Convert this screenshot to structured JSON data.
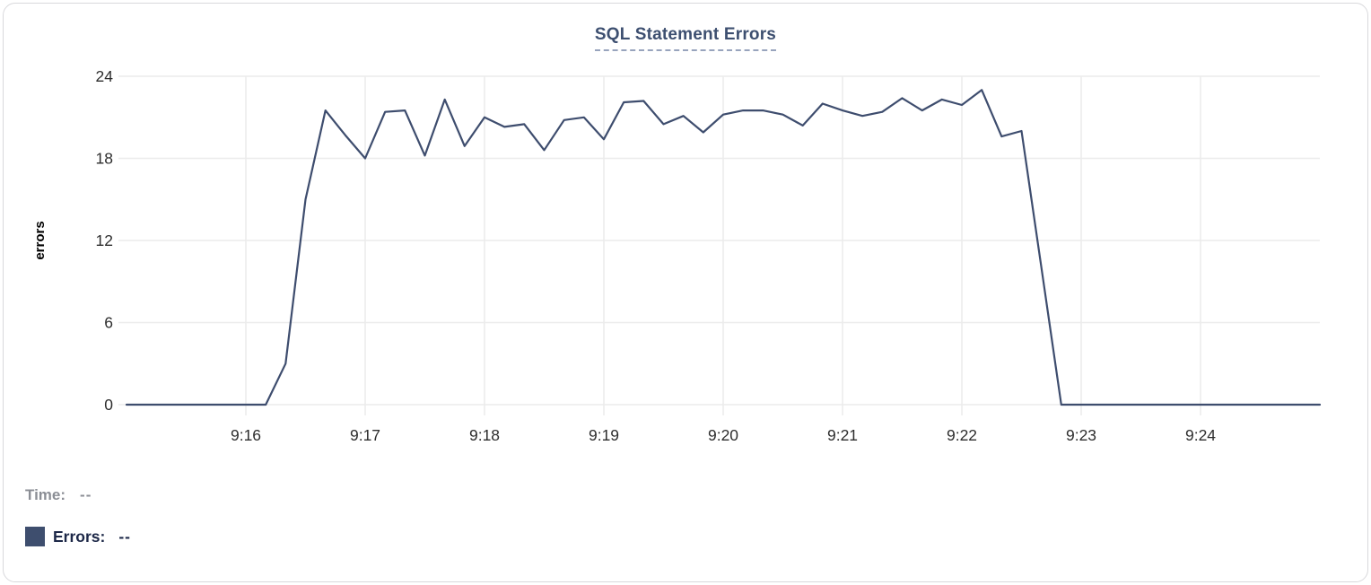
{
  "chart_data": {
    "type": "line",
    "title": "SQL Statement Errors",
    "ylabel": "errors",
    "ylim": [
      0,
      24
    ],
    "y_tick_labels": [
      0,
      6,
      12,
      18,
      24
    ],
    "x_tick_labels": [
      "9:16",
      "9:17",
      "9:18",
      "9:19",
      "9:20",
      "9:21",
      "9:22",
      "9:23",
      "9:24"
    ],
    "x_start": "9:15:00",
    "x_end": "9:25:00",
    "interval_seconds": 10,
    "grid": true,
    "legend_position": "bottom-left",
    "series": [
      {
        "name": "Errors",
        "color": "#3e4d6e",
        "values": [
          0,
          0,
          0,
          0,
          0,
          0,
          0,
          0,
          3,
          15,
          21.5,
          19.7,
          18,
          21.4,
          21.5,
          18.2,
          22.3,
          18.9,
          21,
          20.3,
          20.5,
          18.6,
          20.8,
          21,
          19.4,
          22.1,
          22.2,
          20.5,
          21.1,
          19.9,
          21.2,
          21.5,
          21.5,
          21.2,
          20.4,
          22,
          21.5,
          21.1,
          21.4,
          22.4,
          21.5,
          22.3,
          21.9,
          23,
          19.6,
          20,
          10,
          0,
          0,
          0,
          0,
          0,
          0,
          0,
          0,
          0,
          0,
          0,
          0,
          0,
          0
        ]
      }
    ]
  },
  "legend": {
    "time_label": "Time:",
    "time_value": "--",
    "errors_label": "Errors:",
    "errors_value": "--",
    "swatch_color": "#3e4e6e"
  },
  "colors": {
    "title": "#3d4f70",
    "title_underline": "#98a4bd",
    "grid": "#ececec",
    "axis_text": "#2d2d2d",
    "axis_label": "#000000",
    "line": "#3e4d6e",
    "card_border": "#d9d9dc"
  }
}
